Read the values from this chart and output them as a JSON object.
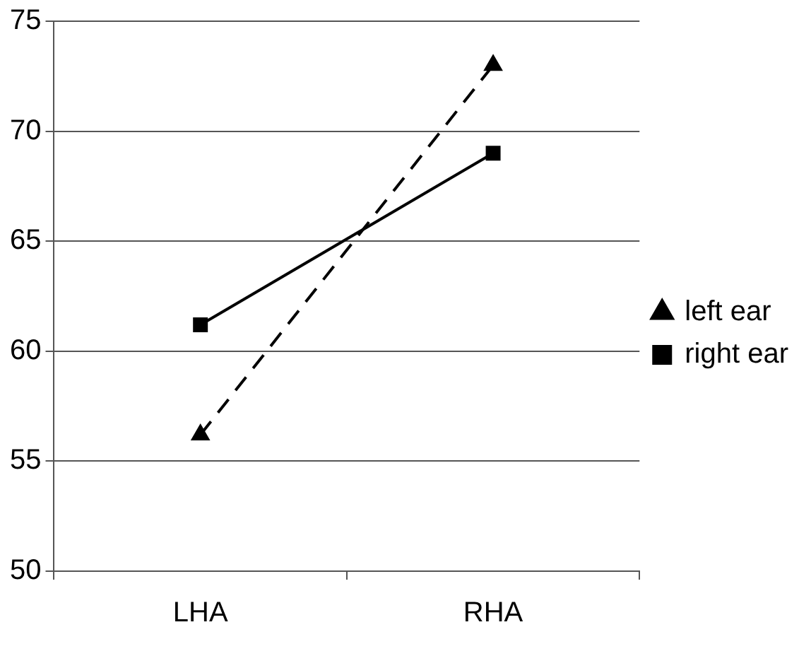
{
  "chart_data": {
    "type": "line",
    "categories": [
      "LHA",
      "RHA"
    ],
    "series": [
      {
        "name": "left ear",
        "color": "#000000",
        "values": [
          56.2,
          73
        ],
        "marker": "triangle",
        "line_style": "dashed"
      },
      {
        "name": "right ear",
        "color": "#000000",
        "values": [
          61.2,
          69
        ],
        "marker": "square",
        "line_style": "solid"
      }
    ],
    "ylim": [
      50,
      75
    ],
    "yticks": [
      50,
      55,
      60,
      65,
      70,
      75
    ],
    "grid": "y",
    "legend": "right"
  }
}
